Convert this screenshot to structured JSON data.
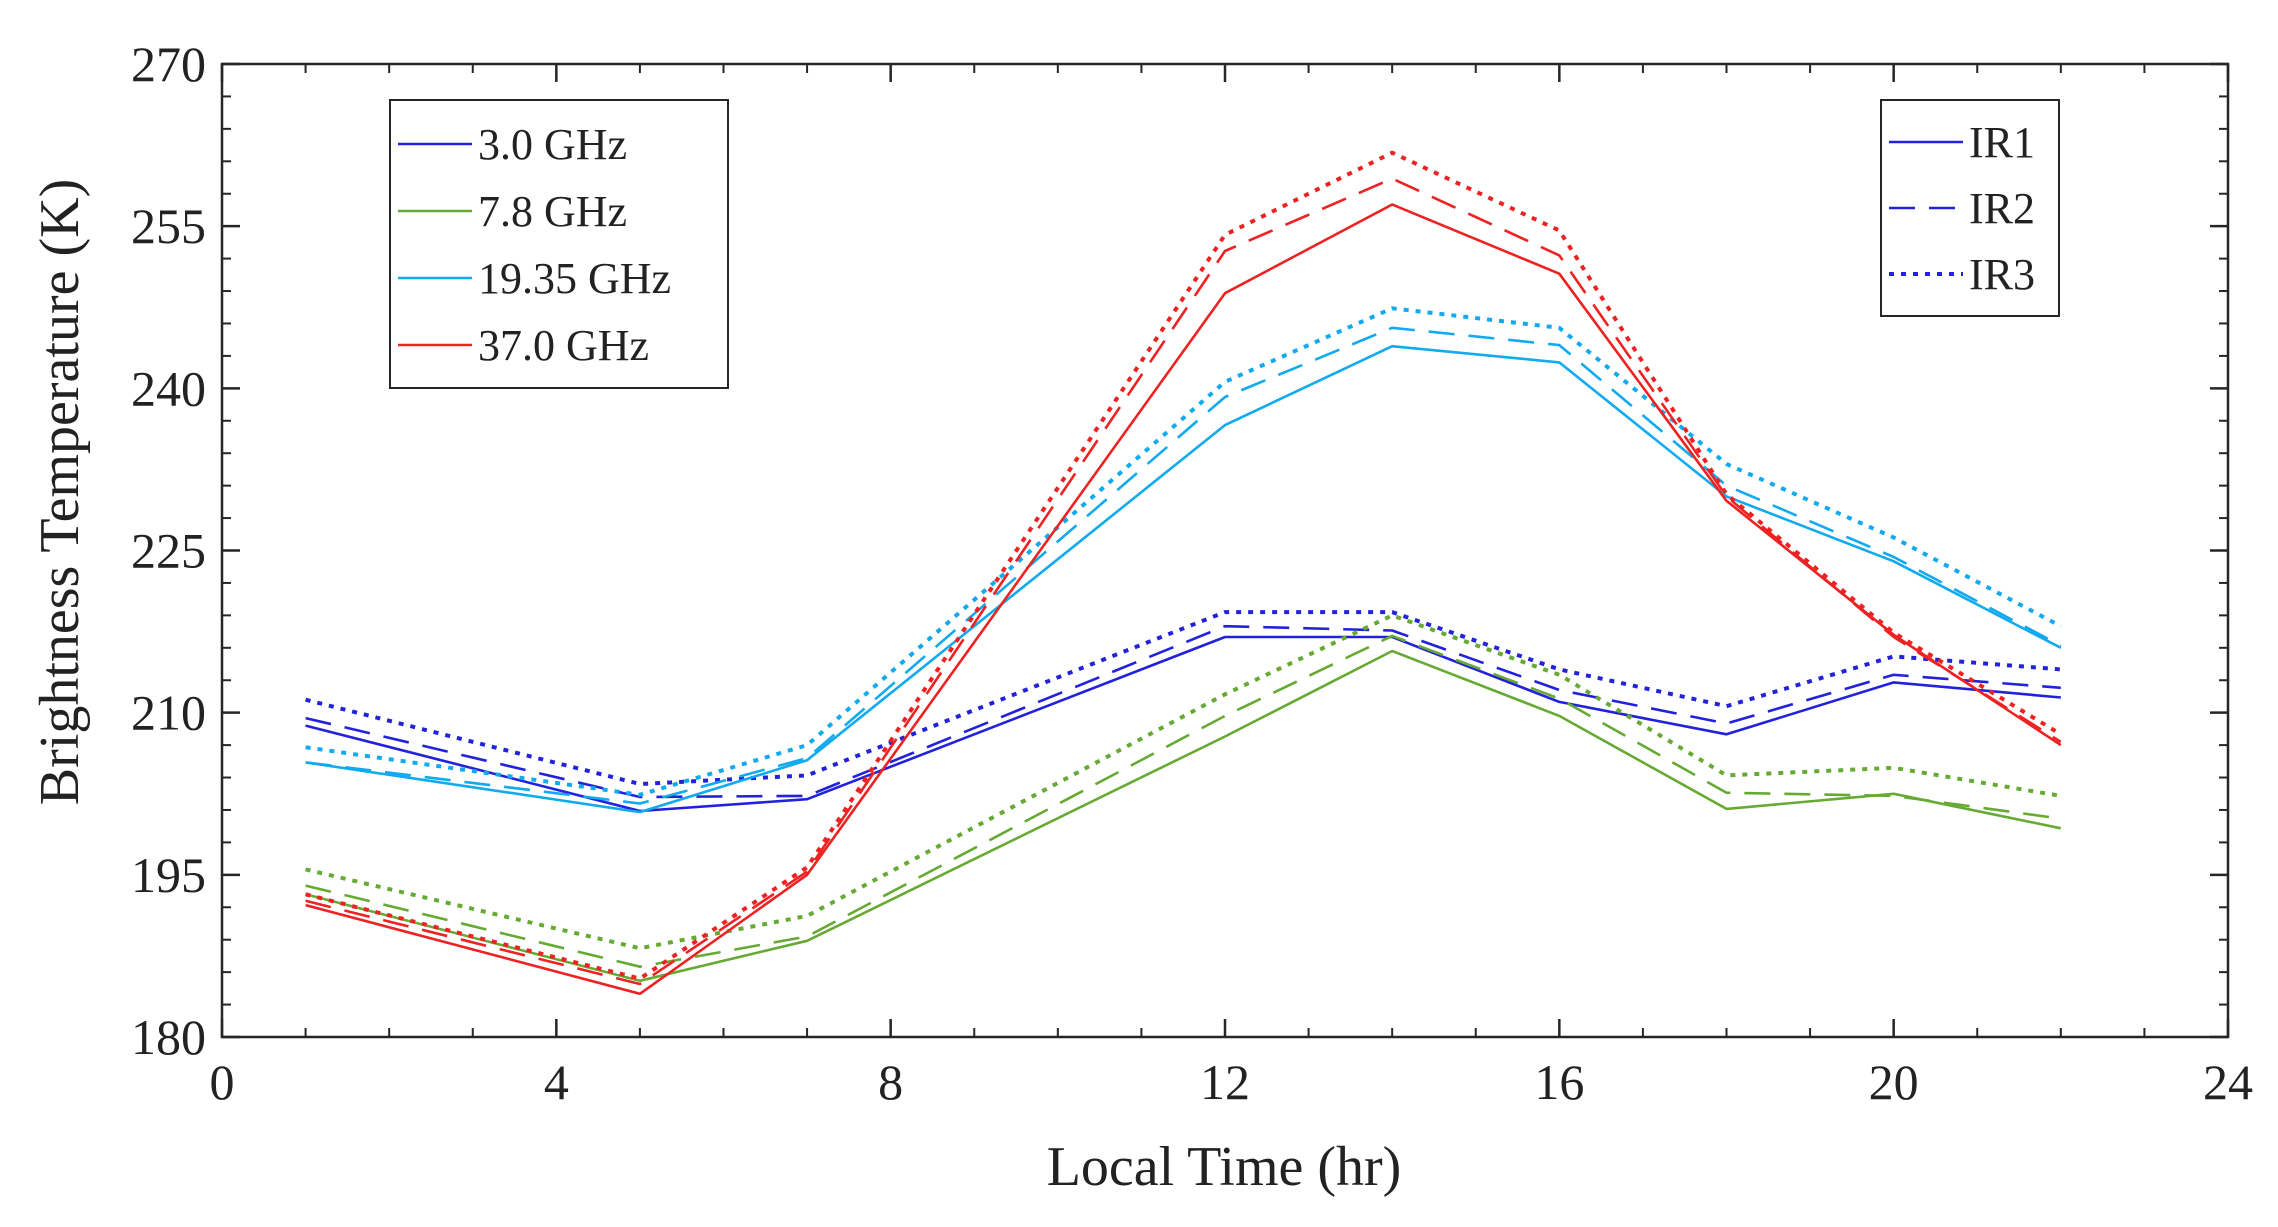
{
  "chart_data": {
    "type": "line",
    "title": "",
    "xlabel": "Local Time (hr)",
    "ylabel": "Brightness Temperature (K)",
    "xlim": [
      0,
      24
    ],
    "ylim": [
      180,
      270
    ],
    "xticks": [
      "0",
      "4",
      "8",
      "12",
      "16",
      "20",
      "24"
    ],
    "yticks": [
      "180",
      "195",
      "210",
      "225",
      "240",
      "255",
      "270"
    ],
    "grid": false,
    "x": [
      1,
      5,
      7,
      12,
      14,
      16,
      18,
      20,
      22
    ],
    "frequency_legend": {
      "placement": "top-left",
      "entries": [
        {
          "label": "3.0 GHz",
          "color": "#2222dd"
        },
        {
          "label": "7.8 GHz",
          "color": "#66aa33"
        },
        {
          "label": "19.35 GHz",
          "color": "#11aaee"
        },
        {
          "label": "37.0 GHz",
          "color": "#ee2222"
        }
      ]
    },
    "style_legend": {
      "placement": "top-right",
      "color": "#2222dd",
      "entries": [
        {
          "label": "IR1",
          "dash": "solid"
        },
        {
          "label": "IR2",
          "dash": "dashed"
        },
        {
          "label": "IR3",
          "dash": "dotted"
        }
      ]
    },
    "series": [
      {
        "frequency": "3.0 GHz",
        "style": "IR1",
        "color": "#2222dd",
        "dash": "solid",
        "values": [
          208.8,
          200.9,
          202.0,
          217.0,
          217.0,
          211.0,
          208.0,
          212.8,
          211.4
        ]
      },
      {
        "frequency": "3.0 GHz",
        "style": "IR2",
        "color": "#2222dd",
        "dash": "dashed",
        "values": [
          209.5,
          202.2,
          202.3,
          218.0,
          217.6,
          212.1,
          209.0,
          213.5,
          212.3
        ]
      },
      {
        "frequency": "3.0 GHz",
        "style": "IR3",
        "color": "#2222dd",
        "dash": "dotted",
        "values": [
          211.2,
          203.4,
          204.2,
          219.3,
          219.3,
          214.0,
          210.6,
          215.2,
          214.0
        ]
      },
      {
        "frequency": "7.8 GHz",
        "style": "IR1",
        "color": "#66aa33",
        "dash": "solid",
        "values": [
          193.2,
          185.2,
          188.9,
          207.8,
          215.7,
          209.7,
          201.1,
          202.5,
          199.3
        ]
      },
      {
        "frequency": "7.8 GHz",
        "style": "IR2",
        "color": "#66aa33",
        "dash": "dashed",
        "values": [
          194.0,
          186.5,
          189.3,
          209.7,
          217.1,
          211.3,
          202.6,
          202.3,
          200.2
        ]
      },
      {
        "frequency": "7.8 GHz",
        "style": "IR3",
        "color": "#66aa33",
        "dash": "dotted",
        "values": [
          195.5,
          188.2,
          191.2,
          211.7,
          219.0,
          213.5,
          204.2,
          204.9,
          202.3
        ]
      },
      {
        "frequency": "19.35 GHz",
        "style": "IR1",
        "color": "#11aaee",
        "dash": "solid",
        "values": [
          205.4,
          200.8,
          205.6,
          236.6,
          243.9,
          242.4,
          230.0,
          224.0,
          216.0
        ]
      },
      {
        "frequency": "19.35 GHz",
        "style": "IR2",
        "color": "#11aaee",
        "dash": "dashed",
        "values": [
          205.4,
          201.6,
          205.8,
          239.2,
          245.6,
          244.0,
          231.0,
          224.4,
          216.2
        ]
      },
      {
        "frequency": "19.35 GHz",
        "style": "IR3",
        "color": "#11aaee",
        "dash": "dotted",
        "values": [
          206.8,
          202.4,
          207.0,
          240.6,
          247.4,
          245.6,
          233.0,
          226.2,
          218.0
        ]
      },
      {
        "frequency": "37.0 GHz",
        "style": "IR1",
        "color": "#ee2222",
        "dash": "solid",
        "values": [
          192.2,
          184.0,
          195.0,
          248.8,
          257.0,
          250.6,
          229.6,
          217.2,
          207.0
        ]
      },
      {
        "frequency": "37.0 GHz",
        "style": "IR2",
        "color": "#ee2222",
        "dash": "dashed",
        "values": [
          192.6,
          184.9,
          195.3,
          252.7,
          259.4,
          252.3,
          230.0,
          217.0,
          207.3
        ]
      },
      {
        "frequency": "37.0 GHz",
        "style": "IR3",
        "color": "#ee2222",
        "dash": "dotted",
        "values": [
          193.2,
          185.4,
          195.7,
          254.2,
          261.8,
          254.6,
          230.2,
          217.4,
          208.0
        ]
      }
    ]
  }
}
